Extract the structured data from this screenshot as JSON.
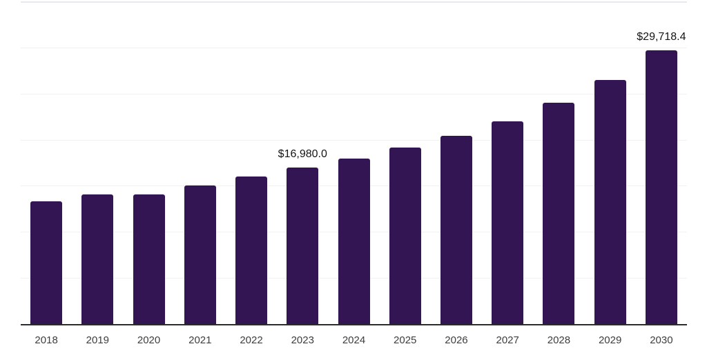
{
  "chart_data": {
    "type": "bar",
    "title": "",
    "xlabel": "",
    "ylabel": "",
    "categories": [
      "2018",
      "2019",
      "2020",
      "2021",
      "2022",
      "2023",
      "2024",
      "2025",
      "2026",
      "2027",
      "2028",
      "2029",
      "2030"
    ],
    "values": [
      13350,
      14050,
      14030,
      15050,
      16030,
      16980,
      17980,
      19130,
      20440,
      21970,
      24020,
      26480,
      29718.4
    ],
    "labeled_points": [
      {
        "category": "2023",
        "label": "$16,980.0"
      },
      {
        "category": "2030",
        "label": "$29,718.4"
      }
    ],
    "ylim": [
      0,
      35000
    ],
    "gridline_interval": 5000,
    "grid": "horizontal-only",
    "legend": "none",
    "colors": {
      "bar": "#341553",
      "axis_line": "#2b2b2b",
      "gridline": "#f1f1f4",
      "top_gridline": "#e8e8ed",
      "tick_label": "#3d3d3d",
      "value_label": "#141414",
      "background": "#ffffff"
    }
  }
}
